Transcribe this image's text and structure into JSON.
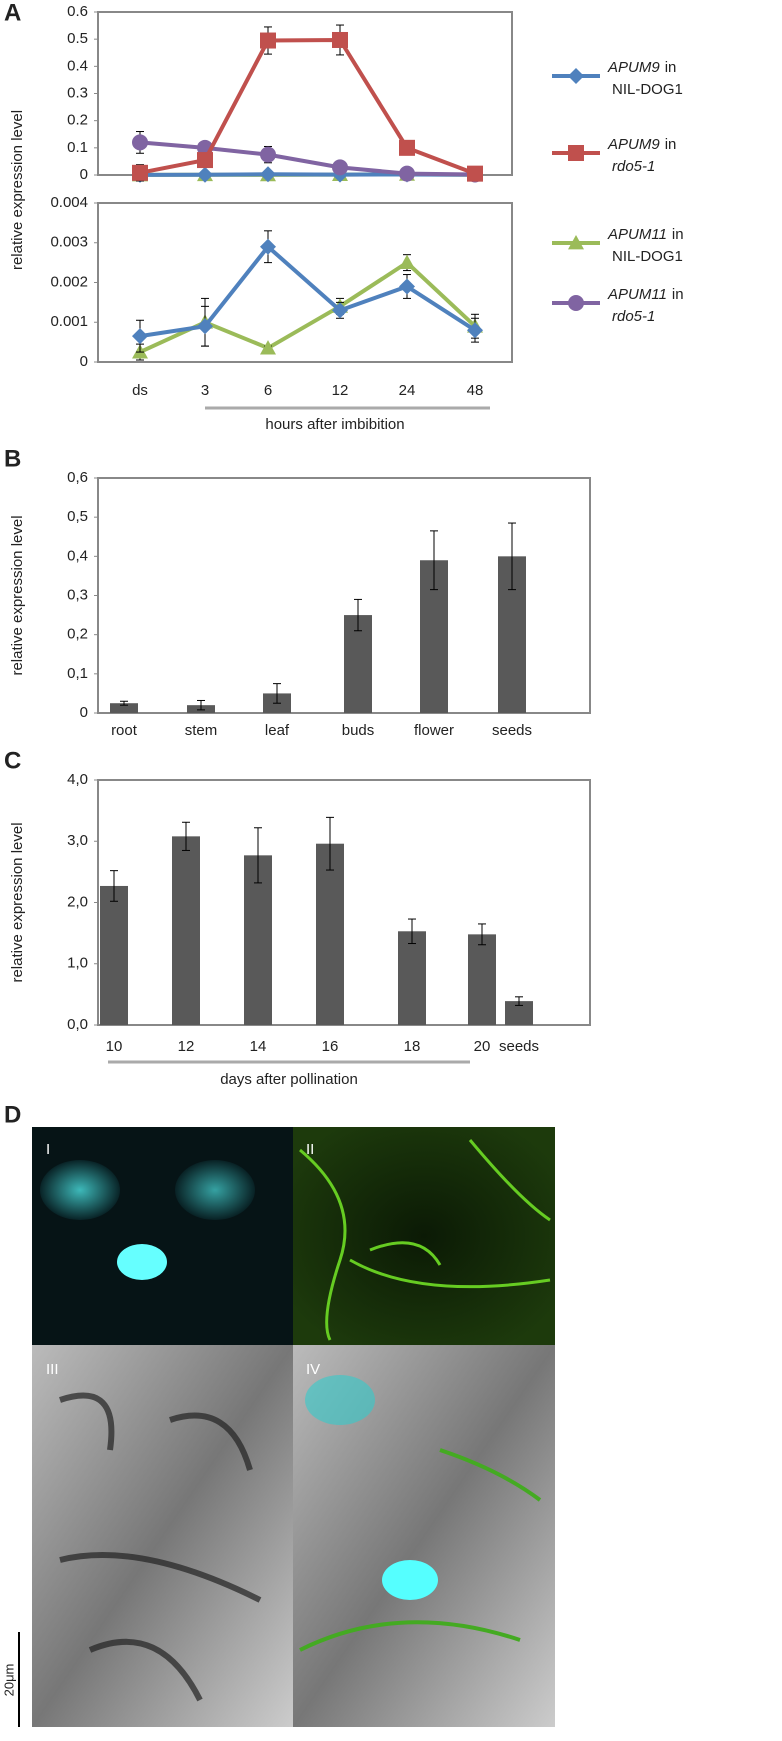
{
  "chart_data": [
    {
      "type": "line",
      "panel_label": "A",
      "ylabel": "relative expression level",
      "xlabel": "hours after imbibition",
      "categories": [
        "ds",
        "3",
        "6",
        "12",
        "24",
        "48"
      ],
      "panels": [
        {
          "ylim": [
            0,
            0.6
          ],
          "yticks": [
            0,
            0.1,
            0.2,
            0.3,
            0.4,
            0.5,
            0.6
          ]
        },
        {
          "ylim": [
            0,
            0.004
          ],
          "yticks": [
            0,
            0.001,
            0.002,
            0.003,
            0.004
          ]
        }
      ],
      "series": [
        {
          "gene": "APUM9",
          "connector": "in",
          "line": "NIL-DOG1",
          "line_italic": false,
          "color": "#4f81bd",
          "marker": "diamond",
          "panels": [
            0,
            1
          ],
          "values": [
            0.00065,
            0.0009,
            0.0029,
            0.0013,
            0.0019,
            0.0008
          ],
          "errors": [
            0.0004,
            0.0005,
            0.0004,
            0.0002,
            0.0003,
            0.0003
          ]
        },
        {
          "gene": "APUM9",
          "connector": "in",
          "line": "rdo5-1",
          "line_italic": true,
          "color": "#c0504d",
          "marker": "square",
          "panels": [
            0
          ],
          "values": [
            0.008,
            0.055,
            0.495,
            0.497,
            0.1,
            0.005
          ],
          "errors": [
            0.03,
            0.02,
            0.05,
            0.055,
            0.025,
            0.005
          ]
        },
        {
          "gene": "APUM11",
          "connector": "in",
          "line": "NIL-DOG1",
          "line_italic": false,
          "color": "#9bbb59",
          "marker": "triangle",
          "panels": [
            0,
            1
          ],
          "values": [
            0.00025,
            0.001,
            0.00035,
            0.0014,
            0.0025,
            0.0009
          ],
          "errors": [
            0.0002,
            0.0006,
            5e-05,
            0.0002,
            0.0002,
            0.0003
          ]
        },
        {
          "gene": "APUM11",
          "connector": "in",
          "line": "rdo5-1",
          "line_italic": true,
          "color": "#8064a2",
          "marker": "circle",
          "panels": [
            0
          ],
          "values": [
            0.12,
            0.1,
            0.075,
            0.028,
            0.005,
            0.002
          ],
          "errors": [
            0.04,
            0.01,
            0.03,
            0.005,
            0.003,
            0.001
          ]
        }
      ]
    },
    {
      "type": "bar",
      "panel_label": "B",
      "ylabel": "relative expression level",
      "color": "#595959",
      "categories": [
        "root",
        "stem",
        "leaf",
        "buds",
        "flower",
        "seeds"
      ],
      "values": [
        0.025,
        0.02,
        0.05,
        0.25,
        0.39,
        0.4
      ],
      "errors": [
        0.005,
        0.012,
        0.025,
        0.04,
        0.075,
        0.085
      ],
      "ylim": [
        0,
        0.6
      ],
      "yticks": [
        0,
        {
          "value": 0.1,
          "label": "0,1"
        },
        {
          "value": 0.2,
          "label": "0,2"
        },
        {
          "value": 0.3,
          "label": "0,3"
        },
        {
          "value": 0.4,
          "label": "0,4"
        },
        {
          "value": 0.5,
          "label": "0,5"
        },
        {
          "value": 0.6,
          "label": "0,6"
        }
      ]
    },
    {
      "type": "bar",
      "panel_label": "C",
      "ylabel": "relative expression level",
      "xlabel": "days after pollination",
      "color": "#595959",
      "categories": [
        "10",
        "12",
        "14",
        "16",
        "18",
        "20",
        "seeds"
      ],
      "values": [
        2.27,
        3.08,
        2.77,
        2.96,
        1.53,
        1.48,
        0.39
      ],
      "errors": [
        0.25,
        0.23,
        0.45,
        0.43,
        0.2,
        0.17,
        0.07
      ],
      "ylim": [
        0,
        4
      ],
      "yticks": [
        {
          "value": 0,
          "label": "0,0"
        },
        {
          "value": 1,
          "label": "1,0"
        },
        {
          "value": 2,
          "label": "2,0"
        },
        {
          "value": 3,
          "label": "3,0"
        },
        {
          "value": 4,
          "label": "4,0"
        }
      ]
    }
  ],
  "panel_d": {
    "label": "D",
    "panes": [
      "I",
      "II",
      "III",
      "IV"
    ],
    "scale_bar": "20μm"
  }
}
